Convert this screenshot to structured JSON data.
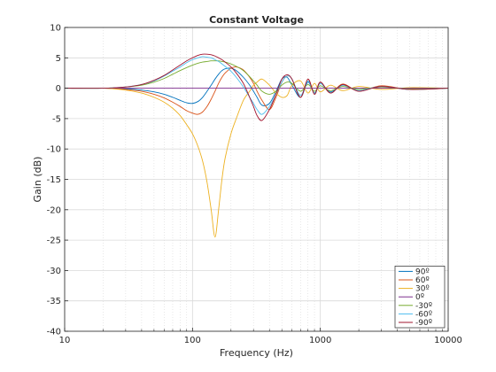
{
  "chart_data": {
    "type": "line",
    "title": "Constant Voltage",
    "xlabel": "Frequency (Hz)",
    "ylabel": "Gain (dB)",
    "xscale": "log",
    "xlim": [
      10,
      10000
    ],
    "ylim": [
      -40,
      10
    ],
    "xticks": [
      10,
      100,
      1000,
      10000
    ],
    "xtick_labels": [
      "10",
      "100",
      "1000",
      "10000"
    ],
    "yticks": [
      -40,
      -35,
      -30,
      -25,
      -20,
      -15,
      -10,
      -5,
      0,
      5,
      10
    ],
    "ytick_labels": [
      "-40",
      "-35",
      "-30",
      "-25",
      "-20",
      "-15",
      "-10",
      "-5",
      "0",
      "5",
      "10"
    ],
    "grid": true,
    "minor_grid_x": true,
    "legend_position": "bottom-right",
    "x": [
      10,
      20,
      30,
      40,
      50,
      60,
      70,
      80,
      90,
      100,
      110,
      120,
      130,
      140,
      150,
      160,
      170,
      180,
      200,
      220,
      250,
      280,
      300,
      320,
      350,
      400,
      450,
      500,
      550,
      600,
      700,
      800,
      900,
      1000,
      1200,
      1500,
      2000,
      3000,
      5000,
      10000
    ],
    "series": [
      {
        "name": "90º",
        "color": "#0072bd",
        "values": [
          0,
          0,
          -0.1,
          -0.3,
          -0.6,
          -1.0,
          -1.5,
          -2.0,
          -2.4,
          -2.5,
          -2.2,
          -1.5,
          -0.5,
          0.5,
          1.5,
          2.3,
          2.9,
          3.2,
          3.3,
          2.9,
          1.8,
          0.5,
          -0.5,
          -1.5,
          -2.8,
          -2.5,
          -0.5,
          1.5,
          1.8,
          0.5,
          -1.5,
          1.0,
          -0.8,
          0.8,
          -0.6,
          0.5,
          -0.4,
          0.3,
          -0.2,
          0
        ]
      },
      {
        "name": "60º",
        "color": "#d95319",
        "values": [
          0,
          0,
          -0.2,
          -0.5,
          -1.0,
          -1.6,
          -2.3,
          -3.0,
          -3.7,
          -4.1,
          -4.3,
          -3.9,
          -3.0,
          -1.8,
          -0.5,
          0.8,
          1.8,
          2.5,
          3.3,
          3.5,
          3.0,
          1.8,
          0.8,
          -0.5,
          -2.0,
          -3.5,
          -1.5,
          1.0,
          2.0,
          1.5,
          -1.5,
          1.5,
          -1.0,
          1.0,
          -0.8,
          0.7,
          -0.5,
          0.4,
          -0.2,
          0
        ]
      },
      {
        "name": "30º",
        "color": "#edb120",
        "values": [
          0,
          0,
          -0.3,
          -0.8,
          -1.5,
          -2.3,
          -3.3,
          -4.5,
          -6.0,
          -7.5,
          -9.5,
          -12.0,
          -15.5,
          -20.0,
          -24.5,
          -20.0,
          -15.0,
          -11.5,
          -7.5,
          -5.0,
          -2.0,
          -0.5,
          0.5,
          1.0,
          1.5,
          0.5,
          -0.8,
          -1.5,
          -1.2,
          0.5,
          1.2,
          -0.8,
          0.8,
          -0.6,
          0.5,
          -0.4,
          0.3,
          -0.2,
          0.1,
          0
        ]
      },
      {
        "name": "0º",
        "color": "#7e2f8e",
        "values": [
          0,
          0,
          0,
          0,
          0,
          0,
          0,
          0,
          0,
          0,
          0,
          0,
          0,
          0,
          0,
          0,
          0,
          0,
          0,
          0,
          0,
          0,
          0,
          0,
          0,
          0,
          0,
          0,
          0,
          0,
          0,
          0,
          0,
          0,
          0,
          0,
          0,
          0,
          0,
          0
        ]
      },
      {
        "name": "-30º",
        "color": "#77ac30",
        "values": [
          0,
          0,
          0.2,
          0.5,
          1.0,
          1.6,
          2.3,
          2.9,
          3.4,
          3.8,
          4.1,
          4.3,
          4.4,
          4.5,
          4.5,
          4.5,
          4.4,
          4.3,
          4.0,
          3.6,
          2.9,
          1.9,
          1.2,
          0.5,
          -0.5,
          -1.0,
          -0.5,
          0.5,
          1.0,
          0.8,
          -0.5,
          0.6,
          -0.5,
          0.4,
          -0.4,
          0.3,
          -0.2,
          0.2,
          -0.1,
          0
        ]
      },
      {
        "name": "-60º",
        "color": "#4dbeee",
        "values": [
          0,
          0,
          0.2,
          0.6,
          1.2,
          2.0,
          2.8,
          3.5,
          4.2,
          4.7,
          5.0,
          5.2,
          5.1,
          5.0,
          4.7,
          4.4,
          4.0,
          3.6,
          2.8,
          1.8,
          0.2,
          -1.5,
          -2.5,
          -3.5,
          -4.3,
          -3.0,
          -1.0,
          1.0,
          2.0,
          1.5,
          -1.2,
          1.2,
          -0.9,
          0.8,
          -0.7,
          0.5,
          -0.4,
          0.3,
          -0.2,
          0
        ]
      },
      {
        "name": "-90º",
        "color": "#a2142f",
        "values": [
          0,
          0,
          0.2,
          0.6,
          1.3,
          2.1,
          3.0,
          3.8,
          4.5,
          5.0,
          5.4,
          5.6,
          5.6,
          5.5,
          5.3,
          5.0,
          4.7,
          4.3,
          3.5,
          2.5,
          0.8,
          -1.5,
          -3.0,
          -4.5,
          -5.3,
          -3.5,
          -1.0,
          1.5,
          2.2,
          1.5,
          -1.5,
          1.5,
          -1.0,
          1.0,
          -0.8,
          0.6,
          -0.5,
          0.3,
          -0.2,
          0
        ]
      }
    ]
  }
}
